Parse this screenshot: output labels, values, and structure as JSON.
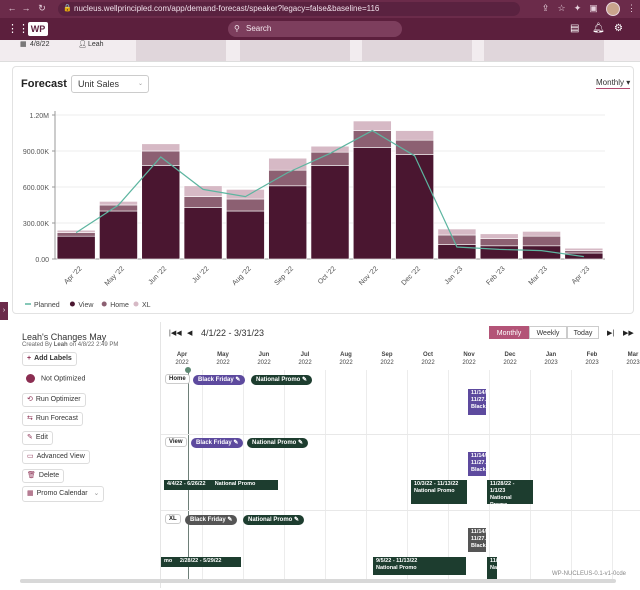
{
  "browser": {
    "url": "nucleus.wellprincipled.com/app/demand-forecast/speaker?legacy=false&baseline=116",
    "lock_icon": "lock-icon"
  },
  "header": {
    "logo_text": "WP",
    "search_placeholder": "Search"
  },
  "top_strip": {
    "date": "4/8/22",
    "user": "Leah"
  },
  "forecast": {
    "title": "Forecast",
    "metric": "Unit Sales",
    "granularity": "Monthly"
  },
  "chart_data": {
    "type": "bar",
    "stacked": true,
    "categories": [
      "Apr '22",
      "May '22",
      "Jun '22",
      "Jul '22",
      "Aug '22",
      "Sep '22",
      "Oct '22",
      "Nov '22",
      "Dec '22",
      "Jan '23",
      "Feb '23",
      "Mar '23",
      "Apr '23"
    ],
    "series": [
      {
        "name": "View",
        "color": "#4a1630",
        "values": [
          190000,
          400000,
          780000,
          430000,
          400000,
          610000,
          780000,
          930000,
          870000,
          120000,
          110000,
          110000,
          50000
        ]
      },
      {
        "name": "Home",
        "color": "#8c6072",
        "values": [
          30000,
          50000,
          120000,
          90000,
          100000,
          130000,
          110000,
          140000,
          120000,
          80000,
          60000,
          80000,
          20000
        ]
      },
      {
        "name": "XL",
        "color": "#d6b9c5",
        "values": [
          20000,
          30000,
          60000,
          90000,
          80000,
          100000,
          50000,
          80000,
          80000,
          50000,
          40000,
          40000,
          20000
        ]
      }
    ],
    "line": {
      "name": "Planned",
      "color": "#5db5a0",
      "values": [
        220000,
        450000,
        850000,
        580000,
        520000,
        720000,
        880000,
        1070000,
        860000,
        100000,
        80000,
        70000,
        20000
      ]
    },
    "y_ticks": [
      "0.00",
      "300.00K",
      "600.00K",
      "900.00K",
      "1.20M"
    ],
    "ylim": [
      0,
      1200000
    ],
    "legend": [
      "Planned",
      "View",
      "Home",
      "XL"
    ],
    "legend_position": "bottom-left"
  },
  "planner": {
    "title": "Leah's Changes May",
    "created_prefix": "Created By",
    "created_by": "Leah",
    "created_on": "on 4/8/22 2:49 PM",
    "add_labels": "Add Labels",
    "status": "Not Optimized",
    "run_optimizer": "Run Optimizer",
    "run_forecast": "Run Forecast",
    "edit": "Edit",
    "advanced_view": "Advanced View",
    "delete": "Delete",
    "promo_calendar": "Promo Calendar",
    "date_range": "4/1/22 - 3/31/23",
    "tabs": [
      "Monthly",
      "Weekly",
      "Today"
    ],
    "months": [
      {
        "m": "Apr",
        "y": "2022"
      },
      {
        "m": "May",
        "y": "2022"
      },
      {
        "m": "Jun",
        "y": "2022"
      },
      {
        "m": "Jul",
        "y": "2022"
      },
      {
        "m": "Aug",
        "y": "2022"
      },
      {
        "m": "Sep",
        "y": "2022"
      },
      {
        "m": "Oct",
        "y": "2022"
      },
      {
        "m": "Nov",
        "y": "2022"
      },
      {
        "m": "Dec",
        "y": "2022"
      },
      {
        "m": "Jan",
        "y": "2023"
      },
      {
        "m": "Feb",
        "y": "2023"
      },
      {
        "m": "Mar",
        "y": "2023"
      }
    ],
    "rows": [
      {
        "label": "Home",
        "pills": [
          "Black Friday",
          "National Promo"
        ]
      },
      {
        "label": "View",
        "pills": [
          "Black Friday",
          "National Promo"
        ]
      },
      {
        "label": "XL",
        "pills": [
          "Black Friday",
          "National Promo"
        ]
      }
    ],
    "bars": {
      "home_nov": "11/14/...\n11/27...\nBlack...",
      "view_nov": "11/14/...\n11/27...\nBlack...",
      "view_a_dates": "4/4/22 - 6/26/22",
      "view_a_name": "National Promo",
      "view_b_dates": "10/3/22 - 11/13/22",
      "view_b_name": "National Promo",
      "view_c_dates": "11/28/22 - 1/1/23",
      "view_c_name": "National Promo",
      "xl_nov": "11/14/...\n11/27...\nBlack...",
      "xl_a_left": "mo",
      "xl_a_dates": "2/28/22 - 5/29/22",
      "xl_a_name": "National Promo",
      "xl_b_dates": "9/5/22 - 11/13/22",
      "xl_b_name": "National Promo",
      "xl_c_dates": "11/...",
      "xl_c_name": "Na..."
    }
  },
  "watermark": "WP-NUCLEUS-0.1-v1-0cde"
}
